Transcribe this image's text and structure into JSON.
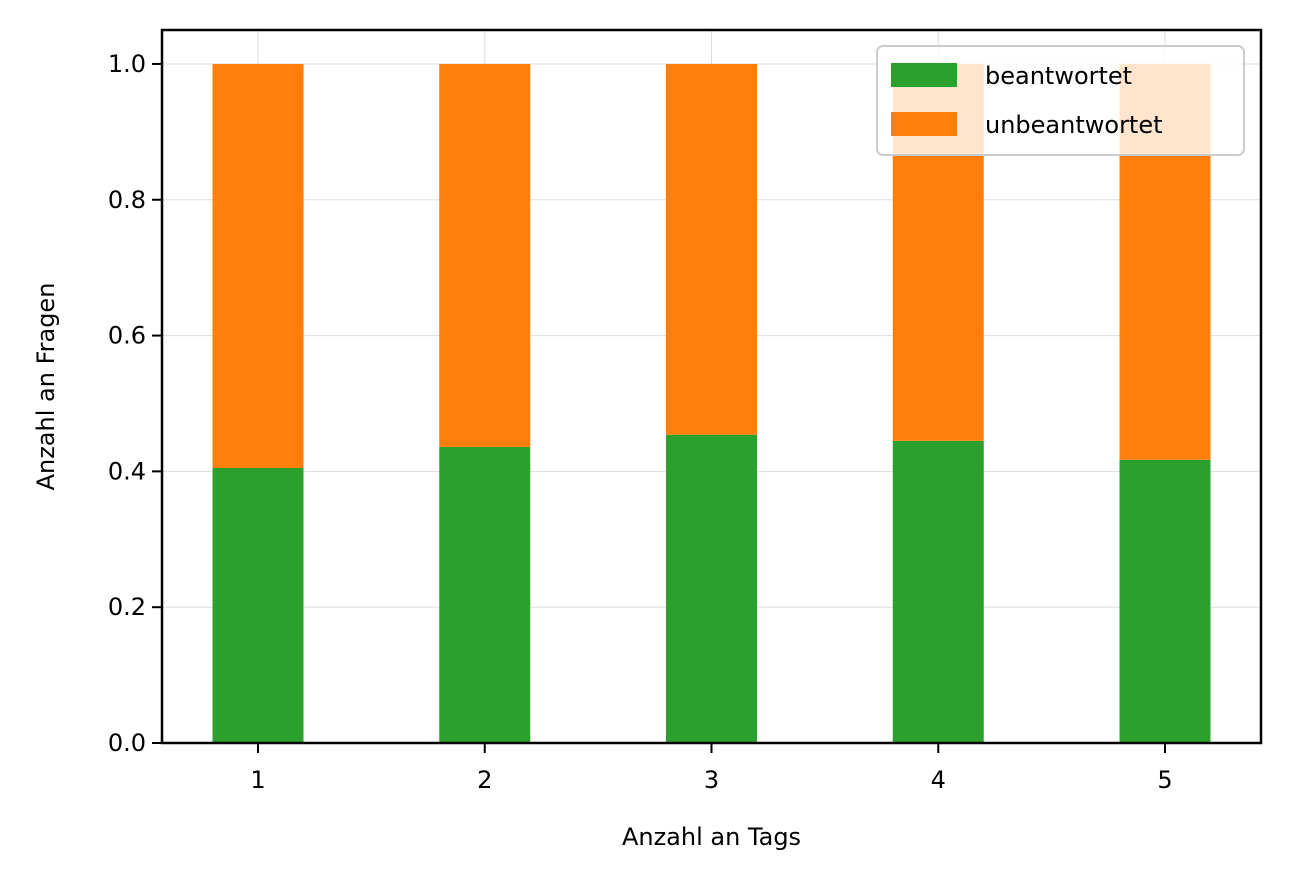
{
  "chart_data": {
    "type": "bar",
    "stacked": true,
    "categories": [
      "1",
      "2",
      "3",
      "4",
      "5"
    ],
    "series": [
      {
        "name": "beantwortet",
        "color": "#2ca02c",
        "values": [
          0.405,
          0.436,
          0.454,
          0.445,
          0.417
        ]
      },
      {
        "name": "unbeantwortet",
        "color": "#ff7f0e",
        "values": [
          0.595,
          0.564,
          0.546,
          0.555,
          0.583
        ]
      }
    ],
    "xlabel": "Anzahl an Tags",
    "ylabel": "Anzahl an Fragen",
    "ylim": [
      0,
      1.05
    ],
    "yticks": [
      "0.0",
      "0.2",
      "0.4",
      "0.6",
      "0.8",
      "1.0"
    ],
    "grid": true,
    "legend_position": "top-right"
  }
}
